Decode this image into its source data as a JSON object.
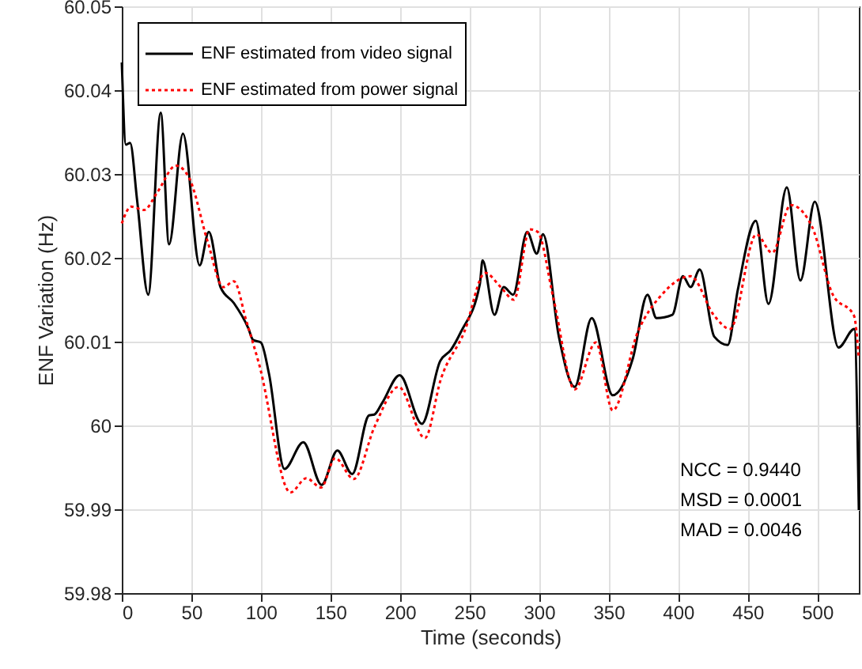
{
  "chart_data": {
    "type": "line",
    "xlabel": "Time (seconds)",
    "ylabel": "ENF Variation (Hz)",
    "xlim": [
      0,
      530
    ],
    "xticks": [
      0,
      50,
      100,
      150,
      200,
      250,
      300,
      350,
      400,
      450,
      500
    ],
    "ylim": [
      59.98,
      60.05
    ],
    "yticks": [
      59.98,
      59.99,
      60,
      60.01,
      60.02,
      60.03,
      60.04,
      60.05
    ],
    "grid": true,
    "legend": "top left",
    "marker": "none",
    "annotations": [
      "NCC = 0.9440",
      "MSD = 0.0001",
      "MAD = 0.0046"
    ],
    "series": [
      {
        "name": "ENF estimated from video signal",
        "color": "#000000",
        "line_style": "solid",
        "x": [
          0,
          3,
          6,
          11,
          19,
          28,
          34,
          44,
          56,
          62.6,
          71,
          80.6,
          91,
          94.4,
          100,
          105.8,
          117,
          130.5,
          143.7,
          155,
          165.7,
          177.8,
          181.6,
          187.3,
          199.8,
          215.8,
          229,
          236.6,
          244,
          257.5,
          259.4,
          268,
          274.6,
          281.4,
          291.5,
          298.4,
          302.9,
          314.3,
          325.7,
          337.9,
          353,
          367.5,
          378,
          384.5,
          395.9,
          403.5,
          409,
          415.6,
          426,
          435.7,
          443,
          455.9,
          465,
          478.2,
          488,
          498.3,
          515.4,
          526.7,
          530
        ],
        "values": [
          60.0433,
          60.0335,
          60.0337,
          60.0269,
          60.0156,
          60.0373,
          60.0216,
          60.0348,
          60.0191,
          60.0231,
          60.0165,
          60.0146,
          60.0116,
          60.0102,
          60.0099,
          60.0062,
          59.9948,
          59.998,
          59.9929,
          59.997,
          59.9942,
          60.0012,
          60.0013,
          60.0027,
          60.006,
          60.0002,
          60.0077,
          60.009,
          60.0112,
          60.0169,
          60.0197,
          60.0132,
          60.0165,
          60.0156,
          60.0231,
          60.0205,
          60.0228,
          60.0106,
          60.0046,
          60.0128,
          60.0036,
          60.008,
          60.0156,
          60.0128,
          60.0132,
          60.0178,
          60.0165,
          60.0186,
          60.0106,
          60.0096,
          60.0162,
          60.0244,
          60.0145,
          60.0284,
          60.0173,
          60.0267,
          60.0093,
          60.0115,
          59.9899
        ]
      },
      {
        "name": "ENF estimated from power signal",
        "color": "#ff0000",
        "line_style": "dotted",
        "x": [
          0,
          6.7,
          16,
          25.5,
          39,
          48.5,
          61.8,
          73,
          80.6,
          89.5,
          98.6,
          121.3,
          132.7,
          143.3,
          153.5,
          166.8,
          181.9,
          199,
          218,
          229.4,
          246.4,
          261.3,
          272.5,
          282,
          293.3,
          299,
          310.6,
          325.7,
          340.9,
          353,
          371.2,
          388.3,
          409,
          426,
          437.4,
          456.3,
          467.7,
          481,
          496.1,
          511.3,
          526.5,
          530
        ],
        "values": [
          60.0241,
          60.0261,
          60.0257,
          60.0278,
          60.031,
          60.0295,
          60.0219,
          60.0165,
          60.0172,
          60.0125,
          60.0074,
          59.992,
          59.9937,
          59.9926,
          59.9961,
          59.9936,
          59.9999,
          60.0046,
          59.9985,
          60.0055,
          60.0112,
          60.0182,
          60.0165,
          60.015,
          60.0234,
          60.0231,
          60.015,
          60.0043,
          60.0099,
          60.0018,
          60.0112,
          60.0156,
          60.0178,
          60.0131,
          60.0115,
          60.0228,
          60.0206,
          60.0263,
          60.0238,
          60.0156,
          60.0131,
          60.008
        ]
      }
    ]
  }
}
